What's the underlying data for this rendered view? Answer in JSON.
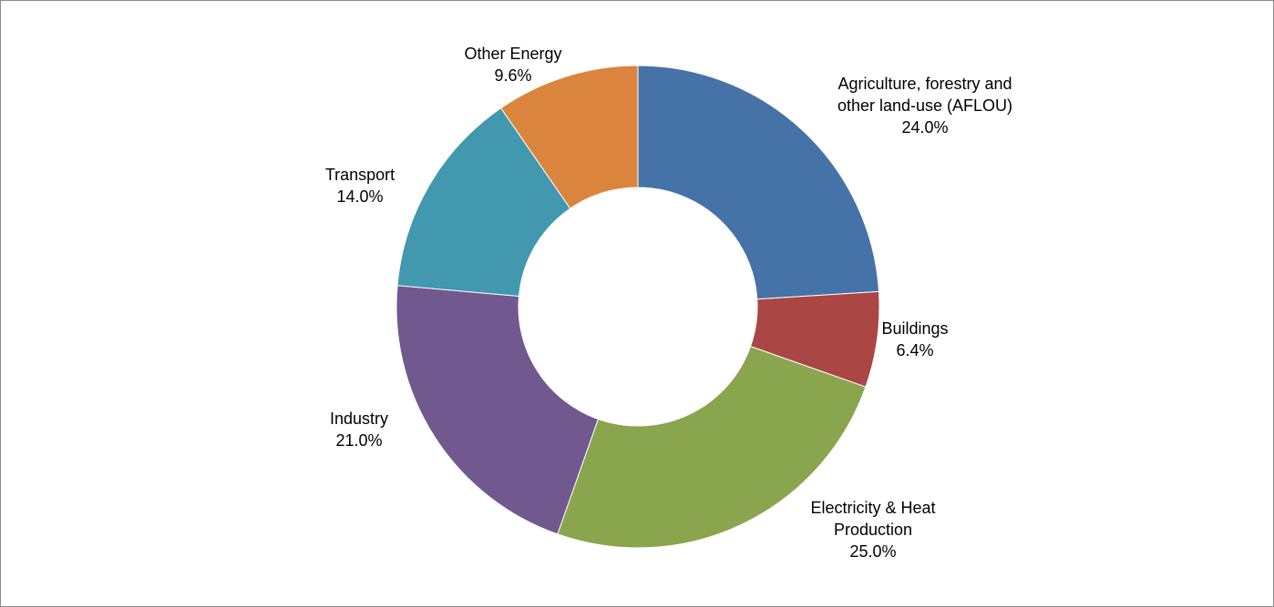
{
  "chart_data": {
    "type": "pie",
    "donut": true,
    "title": "",
    "slices": [
      {
        "label_lines": [
          "Agriculture, forestry and",
          "other land-use (AFLOU)"
        ],
        "value": 24.0,
        "percent_label": "24.0%",
        "color": "#4572A7"
      },
      {
        "label_lines": [
          "Buildings"
        ],
        "value": 6.4,
        "percent_label": "6.4%",
        "color": "#AA4643"
      },
      {
        "label_lines": [
          "Electricity & Heat",
          "Production"
        ],
        "value": 25.0,
        "percent_label": "25.0%",
        "color": "#89A54E"
      },
      {
        "label_lines": [
          "Industry"
        ],
        "value": 21.0,
        "percent_label": "21.0%",
        "color": "#71588F"
      },
      {
        "label_lines": [
          "Transport"
        ],
        "value": 14.0,
        "percent_label": "14.0%",
        "color": "#4198AF"
      },
      {
        "label_lines": [
          "Other Energy"
        ],
        "value": 9.6,
        "percent_label": "9.6%",
        "color": "#DB843D"
      }
    ],
    "start_direction": "top",
    "direction": "clockwise",
    "legend": "none",
    "data_labels": "category-and-percent"
  }
}
